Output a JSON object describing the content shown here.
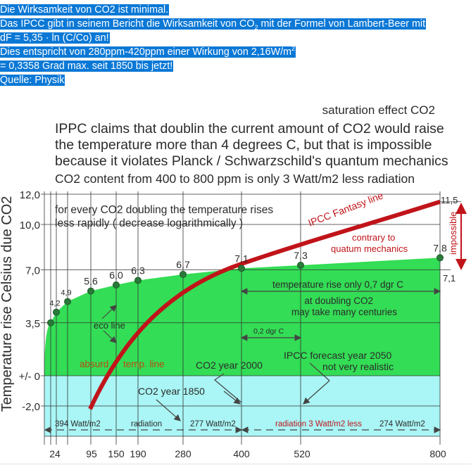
{
  "post": {
    "lines": [
      "Die Wirksamkeit von CO2 ist minimal.",
      "Das IPCC gibt in seinem Bericht die Wirksamkeit von CO",
      "2",
      " mit der Formel von Lambert-Beer mit",
      "dF = 5,35 · ln (C/Co) an!",
      "Dies entspricht von 280ppm-420ppm einer Wirkung von 2,16W/m",
      "2",
      "= 0,3358 Grad max. seit 1850 bis jetzt!",
      "Quelle: Physik"
    ],
    "highlight_color": "#0b78d6"
  },
  "chart_data": {
    "type": "line",
    "title": "saturation effect CO2",
    "subtitle_lines": [
      "IPPC claims that doublin the current amount of CO2 would raise",
      "the temperature more than 4 degrees C, but that is impossible",
      "because it violates  Planck / Schwarzschild's quantum mechanics"
    ],
    "headline": "CO2 content from 400 to 800 ppm is only 3 Watt/m2 less radiation",
    "ylabel": "Temperature rise Celsius due CO2",
    "xlabel": "",
    "y_ticks": [
      "12,0",
      "10,0",
      "7,0",
      "3,5",
      "+/- 0",
      "-2,0"
    ],
    "y_tick_values": [
      12,
      10,
      7,
      3.5,
      0,
      -2
    ],
    "ylim": [
      -2,
      12
    ],
    "x_ticks": [
      "24",
      "95",
      "150",
      "190",
      "280",
      "400",
      "520",
      "800"
    ],
    "series": [
      {
        "name": "eco line",
        "color": "#2a8a3e",
        "fill": "#33dd55",
        "points": [
          {
            "x": "",
            "y": 3.5,
            "label": ""
          },
          {
            "x": "24",
            "y": 4.2,
            "label": "4,2"
          },
          {
            "x": "",
            "y": 4.9,
            "label": "4,9"
          },
          {
            "x": "95",
            "y": 5.6,
            "label": "5,6"
          },
          {
            "x": "150",
            "y": 6.0,
            "label": "6,0"
          },
          {
            "x": "190",
            "y": 6.3,
            "label": "6,3"
          },
          {
            "x": "280",
            "y": 6.7,
            "label": "6,7"
          },
          {
            "x": "400",
            "y": 7.1,
            "label": "7,1"
          },
          {
            "x": "520",
            "y": 7.3,
            "label": "7,3"
          },
          {
            "x": "800",
            "y": 7.8,
            "label": "7,8"
          }
        ]
      },
      {
        "name": "IPCC Fantasy line",
        "color": "#c0141a",
        "start_value": -2.2,
        "end_value": 11.5
      }
    ],
    "right_labels": {
      "top": "11,5",
      "bottom": "7,1",
      "impossible": "impossible"
    },
    "annotations": {
      "doubling_1": "for every CO2 doubling the temperature rises",
      "doubling_2": "less rapidly ( decrease logarithmically )",
      "fantasy": "IPCC Fantasy line",
      "contrary_1": "contrary to",
      "contrary_2": "quatum mechanics",
      "rise_only": "temperature rise only 0,7 dgr C",
      "at_doubling": "at doubling CO2",
      "centuries": "may take many centuries",
      "eco_line": "eco line",
      "dgr_02": "0,2 dgr C",
      "absurd": "absurd",
      "temp_line": "temp. line",
      "year_2000": "CO2 year 2000",
      "forecast_1": "IPCC forecast year 2050",
      "forecast_2": "not very realistic",
      "year_1850": "CO2 year 1850",
      "w394": "394 Watt/m2",
      "radiation": "radiation",
      "w277": "277 Watt/m2",
      "rad_less": "radiation 3 Watt/m2 less",
      "w274": "274 Watt/m2"
    },
    "colors": {
      "green": "#33dd55",
      "cyan": "#aaf5f5",
      "red": "#c0141a",
      "text": "#2b2b2b"
    }
  }
}
